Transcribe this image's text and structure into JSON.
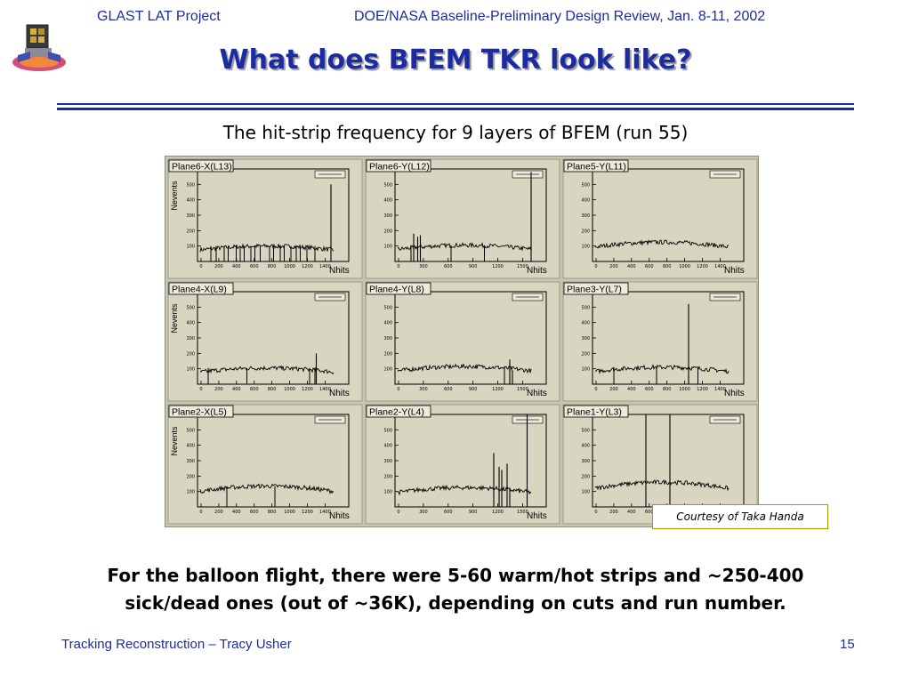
{
  "header": {
    "project": "GLAST LAT Project",
    "review": "DOE/NASA Baseline-Preliminary Design Review, Jan. 8-11, 2002"
  },
  "title": "What does BFEM TKR look like?",
  "subtitle": "The hit-strip frequency for 9 layers of BFEM (run 55)",
  "credit": "Courtesy of Taka Handa",
  "note": {
    "line1": "For the balloon flight, there were 5-60 warm/hot strips and ~250-400",
    "line2": "sick/dead ones (out of ~36K), depending on cuts and run number."
  },
  "footer": {
    "talk": "Tracking Reconstruction – Tracy Usher",
    "page": "15"
  },
  "colors": {
    "accent": "#1c2ca0",
    "panel_bg": "#d8d5c0",
    "grid_bg": "#c9c6b4"
  },
  "chart_data": {
    "type": "line",
    "ylabel": "Nevents",
    "xlabel": "Nhits",
    "ylim": [
      0,
      600
    ],
    "panels": [
      {
        "name": "Plane6-X(L13)",
        "xtick_labels": [
          "0",
          "200",
          "400",
          "600",
          "800",
          "1000",
          "1200",
          "1400"
        ],
        "baseline": 100,
        "dead": [
          0.08,
          0.12,
          0.18,
          0.21,
          0.27,
          0.3,
          0.33,
          0.38,
          0.41,
          0.45,
          0.52,
          0.55,
          0.6,
          0.63,
          0.68,
          0.72,
          0.75,
          0.8,
          0.86
        ],
        "hot": [
          {
            "pos": 0.94,
            "height": 500
          }
        ]
      },
      {
        "name": "Plane6-Y(L12)",
        "xtick_labels": [
          "0",
          "300",
          "600",
          "900",
          "1200",
          "1500"
        ],
        "baseline": 105,
        "dead": [
          0.1,
          0.4,
          0.65
        ],
        "hot": [
          {
            "pos": 0.12,
            "height": 180
          },
          {
            "pos": 0.15,
            "height": 160
          },
          {
            "pos": 0.17,
            "height": 170
          },
          {
            "pos": 0.96,
            "height": 580
          }
        ]
      },
      {
        "name": "Plane5-Y(L11)",
        "xtick_labels": [
          "0",
          "200",
          "400",
          "600",
          "800",
          "1000",
          "1200",
          "1400"
        ],
        "baseline": 125,
        "dead": [],
        "hot": []
      },
      {
        "name": "Plane4-X(L9)",
        "xtick_labels": [
          "0",
          "200",
          "400",
          "600",
          "800",
          "1000",
          "1200",
          "1400"
        ],
        "baseline": 105,
        "dead": [
          0.06,
          0.35,
          0.82,
          0.86
        ],
        "hot": [
          {
            "pos": 0.87,
            "height": 200
          }
        ]
      },
      {
        "name": "Plane4-Y(L8)",
        "xtick_labels": [
          "0",
          "300",
          "600",
          "900",
          "1200",
          "1500"
        ],
        "baseline": 115,
        "dead": [
          0.8
        ],
        "hot": [
          {
            "pos": 0.84,
            "height": 160
          },
          {
            "pos": 0.86,
            "height": 90
          }
        ]
      },
      {
        "name": "Plane3-Y(L7)",
        "xtick_labels": [
          "0",
          "200",
          "400",
          "600",
          "800",
          "1000",
          "1200",
          "1400"
        ],
        "baseline": 110,
        "dead": [
          0.14,
          0.46,
          0.7,
          0.77
        ],
        "hot": [
          {
            "pos": 0.7,
            "height": 520
          }
        ]
      },
      {
        "name": "Plane2-X(L5)",
        "xtick_labels": [
          "0",
          "200",
          "400",
          "600",
          "800",
          "1000",
          "1200",
          "1400"
        ],
        "baseline": 135,
        "dead": [
          0.2,
          0.56
        ],
        "hot": []
      },
      {
        "name": "Plane2-Y(L4)",
        "xtick_labels": [
          "0",
          "300",
          "600",
          "900",
          "1200",
          "1500"
        ],
        "baseline": 125,
        "dead": [
          0.78,
          0.82
        ],
        "hot": [
          {
            "pos": 0.72,
            "height": 350
          },
          {
            "pos": 0.76,
            "height": 260
          },
          {
            "pos": 0.78,
            "height": 240
          },
          {
            "pos": 0.82,
            "height": 280
          },
          {
            "pos": 0.84,
            "height": 120
          },
          {
            "pos": 0.93,
            "height": 600
          }
        ]
      },
      {
        "name": "Plane1-Y(L3)",
        "xtick_labels": [
          "0",
          "200",
          "400",
          "600",
          "800",
          "1000",
          "1200",
          "1400"
        ],
        "baseline": 160,
        "dead": [],
        "hot": [
          {
            "pos": 0.38,
            "height": 600
          },
          {
            "pos": 0.56,
            "height": 600
          }
        ]
      }
    ]
  }
}
